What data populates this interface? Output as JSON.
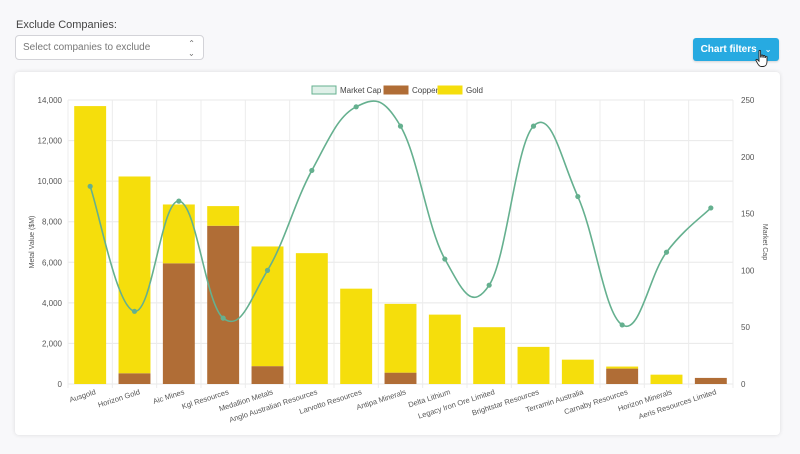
{
  "filter": {
    "label": "Exclude Companies:",
    "placeholder": "Select companies to exclude"
  },
  "toolbar": {
    "chart_filters_label": "Chart filters"
  },
  "colors": {
    "copper": "#b06d36",
    "gold": "#f5de0c",
    "market_cap": "#65b08f",
    "button": "#27aae1"
  },
  "chart_data": {
    "type": "bar",
    "categories": [
      "Ausgold",
      "Horizon Gold",
      "Aic Mines",
      "Kgl Resources",
      "Medallion Metals",
      "Anglo Australian Resources",
      "Larvotto Resources",
      "Antipa Minerals",
      "Delta Lithium",
      "Legacy Iron Ore Limited",
      "Brightstar Resources",
      "Terramin Australia",
      "Carnaby Resources",
      "Horizon Minerals",
      "Aeris Resources Limited"
    ],
    "series": [
      {
        "name": "Copper",
        "type": "bar",
        "stack": "metal",
        "axis": "left",
        "values": [
          0,
          530,
          5950,
          7800,
          880,
          0,
          0,
          560,
          0,
          0,
          0,
          0,
          760,
          0,
          300
        ]
      },
      {
        "name": "Gold",
        "type": "bar",
        "stack": "metal",
        "axis": "left",
        "values": [
          13700,
          9700,
          2900,
          970,
          5900,
          6450,
          4700,
          3390,
          3420,
          2800,
          1830,
          1200,
          100,
          460,
          0
        ]
      },
      {
        "name": "Market Cap",
        "type": "line",
        "axis": "right",
        "values": [
          174,
          64,
          161,
          58,
          100,
          188,
          244,
          227,
          110,
          87,
          227,
          165,
          52,
          116,
          155
        ]
      }
    ],
    "legend": {
      "position": "top",
      "items": [
        "Market Cap",
        "Copper",
        "Gold"
      ]
    },
    "y_left": {
      "label": "Metal Value ($M)",
      "min": 0,
      "max": 14000,
      "step": 2000,
      "ticks": [
        "0",
        "2,000",
        "4,000",
        "6,000",
        "8,000",
        "10,000",
        "12,000",
        "14,000"
      ]
    },
    "y_right": {
      "label": "Market Cap",
      "min": 0,
      "max": 250,
      "step": 50,
      "ticks": [
        "0",
        "50",
        "100",
        "150",
        "200",
        "250"
      ]
    },
    "grid": true
  }
}
